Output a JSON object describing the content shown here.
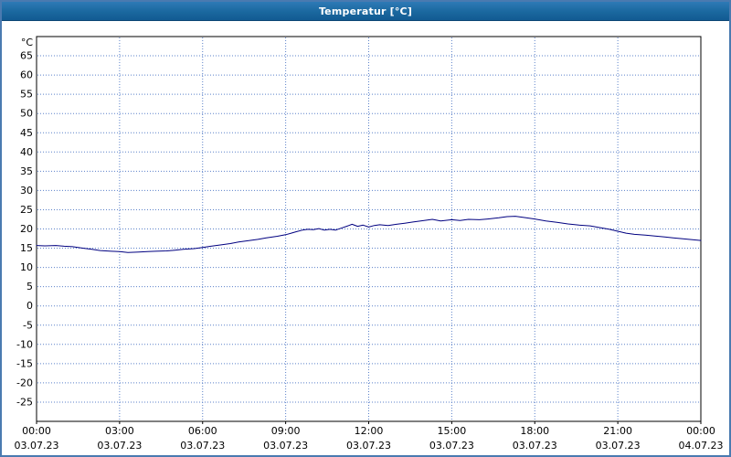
{
  "window": {
    "title": "Temperatur [°C]"
  },
  "chart_data": {
    "type": "line",
    "title": "Temperatur [°C]",
    "ylabel": "°C",
    "xlabel": "",
    "grid": true,
    "grid_color": "#5b81c9",
    "plot_bg": "#ffffff",
    "plot_border": "#000000",
    "legend_position": "none",
    "y_axis": {
      "min": -30,
      "max": 70,
      "tick_min": -25,
      "tick_max": 65,
      "tick_step": 5
    },
    "x_axis": {
      "min_hour": 0,
      "max_hour": 24,
      "tick_step_hours": 3,
      "ticks": [
        {
          "time": "00:00",
          "date": "03.07.23"
        },
        {
          "time": "03:00",
          "date": "03.07.23"
        },
        {
          "time": "06:00",
          "date": "03.07.23"
        },
        {
          "time": "09:00",
          "date": "03.07.23"
        },
        {
          "time": "12:00",
          "date": "03.07.23"
        },
        {
          "time": "15:00",
          "date": "03.07.23"
        },
        {
          "time": "18:00",
          "date": "03.07.23"
        },
        {
          "time": "21:00",
          "date": "03.07.23"
        },
        {
          "time": "00:00",
          "date": "04.07.23"
        }
      ]
    },
    "series": [
      {
        "name": "Temperatur",
        "unit": "°C",
        "color": "#000080",
        "points": [
          [
            0.0,
            15.7
          ],
          [
            0.3,
            15.6
          ],
          [
            0.7,
            15.7
          ],
          [
            1.0,
            15.5
          ],
          [
            1.3,
            15.4
          ],
          [
            1.7,
            15.0
          ],
          [
            2.0,
            14.7
          ],
          [
            2.3,
            14.4
          ],
          [
            2.7,
            14.2
          ],
          [
            3.0,
            14.1
          ],
          [
            3.3,
            13.9
          ],
          [
            3.7,
            14.0
          ],
          [
            4.0,
            14.1
          ],
          [
            4.3,
            14.2
          ],
          [
            4.7,
            14.3
          ],
          [
            5.0,
            14.5
          ],
          [
            5.3,
            14.7
          ],
          [
            5.7,
            14.9
          ],
          [
            6.0,
            15.2
          ],
          [
            6.3,
            15.5
          ],
          [
            6.7,
            15.9
          ],
          [
            7.0,
            16.2
          ],
          [
            7.3,
            16.6
          ],
          [
            7.7,
            17.0
          ],
          [
            8.0,
            17.3
          ],
          [
            8.3,
            17.7
          ],
          [
            8.7,
            18.1
          ],
          [
            9.0,
            18.5
          ],
          [
            9.2,
            18.9
          ],
          [
            9.4,
            19.3
          ],
          [
            9.6,
            19.7
          ],
          [
            9.8,
            19.9
          ],
          [
            10.0,
            19.8
          ],
          [
            10.2,
            20.1
          ],
          [
            10.4,
            19.7
          ],
          [
            10.6,
            19.9
          ],
          [
            10.8,
            19.7
          ],
          [
            11.0,
            20.2
          ],
          [
            11.2,
            20.7
          ],
          [
            11.4,
            21.2
          ],
          [
            11.6,
            20.7
          ],
          [
            11.8,
            21.0
          ],
          [
            12.0,
            20.5
          ],
          [
            12.2,
            20.9
          ],
          [
            12.4,
            21.1
          ],
          [
            12.7,
            20.9
          ],
          [
            13.0,
            21.2
          ],
          [
            13.3,
            21.5
          ],
          [
            13.6,
            21.8
          ],
          [
            14.0,
            22.2
          ],
          [
            14.3,
            22.5
          ],
          [
            14.6,
            22.1
          ],
          [
            15.0,
            22.4
          ],
          [
            15.3,
            22.2
          ],
          [
            15.6,
            22.5
          ],
          [
            16.0,
            22.4
          ],
          [
            16.3,
            22.6
          ],
          [
            16.7,
            22.9
          ],
          [
            17.0,
            23.2
          ],
          [
            17.3,
            23.3
          ],
          [
            17.6,
            23.0
          ],
          [
            18.0,
            22.6
          ],
          [
            18.4,
            22.1
          ],
          [
            18.8,
            21.7
          ],
          [
            19.2,
            21.3
          ],
          [
            19.6,
            21.0
          ],
          [
            20.0,
            20.8
          ],
          [
            20.3,
            20.4
          ],
          [
            20.7,
            19.9
          ],
          [
            21.0,
            19.4
          ],
          [
            21.3,
            18.9
          ],
          [
            21.6,
            18.6
          ],
          [
            22.0,
            18.4
          ],
          [
            22.3,
            18.2
          ],
          [
            22.7,
            17.9
          ],
          [
            23.0,
            17.7
          ],
          [
            23.4,
            17.4
          ],
          [
            23.7,
            17.2
          ],
          [
            24.0,
            17.0
          ]
        ]
      }
    ]
  },
  "colors": {
    "title_bar": "#1a689f",
    "window_border": "#4a7ab0",
    "grid": "#5b81c9",
    "line": "#000080",
    "text": "#000000"
  }
}
